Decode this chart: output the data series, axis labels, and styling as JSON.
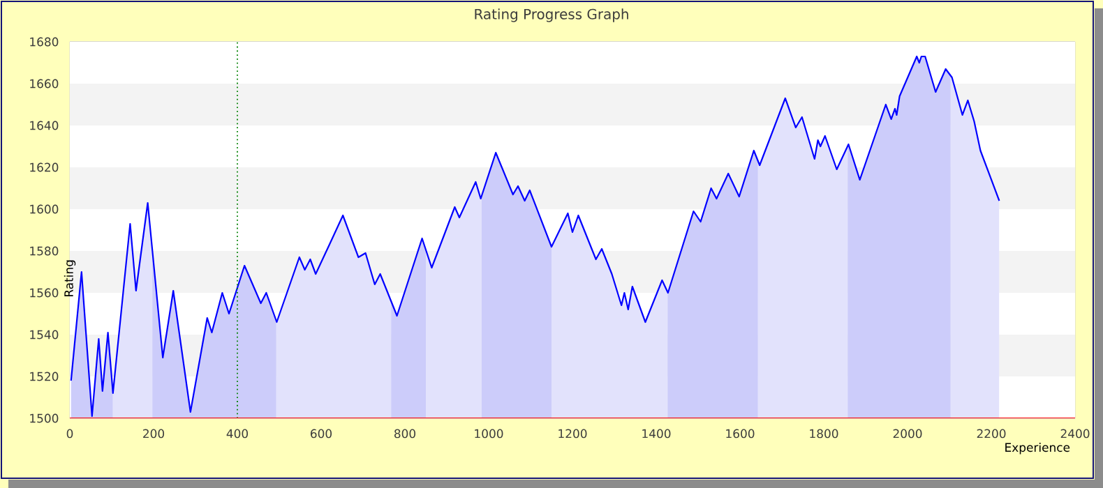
{
  "chart_data": {
    "type": "line",
    "title": "Rating Progress Graph",
    "xlabel": "Experience",
    "ylabel": "Rating",
    "xlim": [
      0,
      2400
    ],
    "xticks": [
      0,
      200,
      400,
      600,
      800,
      1000,
      1200,
      1400,
      1600,
      1800,
      2000,
      2200,
      2400
    ],
    "ylim": [
      1500,
      1680
    ],
    "yticks": [
      1500,
      1520,
      1540,
      1560,
      1580,
      1600,
      1620,
      1640,
      1660,
      1680
    ],
    "grid": "y",
    "line_style": "solid",
    "x": [
      3,
      28,
      53,
      69,
      78,
      91,
      103,
      144,
      158,
      186,
      222,
      247,
      288,
      328,
      339,
      364,
      380,
      417,
      456,
      469,
      494,
      548,
      561,
      574,
      587,
      622,
      652,
      689,
      706,
      728,
      741,
      781,
      841,
      864,
      919,
      930,
      969,
      981,
      1017,
      1058,
      1070,
      1086,
      1098,
      1150,
      1189,
      1200,
      1214,
      1256,
      1270,
      1294,
      1317,
      1324,
      1333,
      1343,
      1374,
      1414,
      1428,
      1489,
      1506,
      1531,
      1544,
      1572,
      1598,
      1633,
      1647,
      1708,
      1733,
      1748,
      1778,
      1786,
      1792,
      1803,
      1831,
      1859,
      1886,
      1948,
      1961,
      1970,
      1974,
      1981,
      2022,
      2028,
      2033,
      2042,
      2067,
      2091,
      2106,
      2131,
      2144,
      2159,
      2174,
      2219
    ],
    "series": [
      {
        "color": "#0000ff",
        "values": [
          1518,
          1570,
          1501,
          1538,
          1513,
          1541,
          1512,
          1593,
          1561,
          1603,
          1529,
          1561,
          1503,
          1548,
          1541,
          1560,
          1550,
          1573,
          1555,
          1560,
          1546,
          1577,
          1571,
          1576,
          1569,
          1584,
          1597,
          1577,
          1579,
          1564,
          1569,
          1549,
          1586,
          1572,
          1601,
          1596,
          1613,
          1605,
          1627,
          1607,
          1611,
          1604,
          1609,
          1582,
          1598,
          1589,
          1597,
          1576,
          1581,
          1569,
          1554,
          1560,
          1552,
          1563,
          1546,
          1566,
          1560,
          1599,
          1594,
          1610,
          1605,
          1617,
          1606,
          1628,
          1621,
          1653,
          1639,
          1644,
          1624,
          1633,
          1630,
          1635,
          1619,
          1631,
          1614,
          1650,
          1643,
          1648,
          1645,
          1654,
          1673,
          1670,
          1673,
          1673,
          1656,
          1667,
          1663,
          1645,
          1652,
          1642,
          1628,
          1604
        ]
      }
    ],
    "ref_lines": [
      {
        "axis": "x",
        "value": 400,
        "color": "#008000",
        "line_style": "dotted"
      }
    ],
    "bands": [
      {
        "axis": "x",
        "from": 0,
        "to": 103,
        "color": "#ccccfa"
      },
      {
        "axis": "x",
        "from": 103,
        "to": 197,
        "color": "#e2e2fc"
      },
      {
        "axis": "x",
        "from": 197,
        "to": 493,
        "color": "#ccccfa"
      },
      {
        "axis": "x",
        "from": 493,
        "to": 767,
        "color": "#e2e2fc"
      },
      {
        "axis": "x",
        "from": 767,
        "to": 850,
        "color": "#ccccfa"
      },
      {
        "axis": "x",
        "from": 850,
        "to": 983,
        "color": "#e2e2fc"
      },
      {
        "axis": "x",
        "from": 983,
        "to": 1150,
        "color": "#ccccfa"
      },
      {
        "axis": "x",
        "from": 1150,
        "to": 1427,
        "color": "#e2e2fc"
      },
      {
        "axis": "x",
        "from": 1427,
        "to": 1643,
        "color": "#ccccfa"
      },
      {
        "axis": "x",
        "from": 1643,
        "to": 1857,
        "color": "#e2e2fc"
      },
      {
        "axis": "x",
        "from": 1857,
        "to": 2103,
        "color": "#ccccfa"
      },
      {
        "axis": "x",
        "from": 2103,
        "to": 2219,
        "color": "#e2e2fc"
      }
    ]
  }
}
